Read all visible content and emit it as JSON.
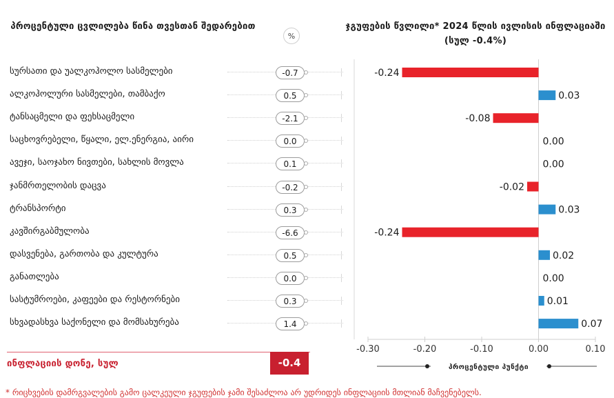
{
  "left_title": "პროცენტული ცვლილება წინა თვესთან შედარებით",
  "pct_header": "%",
  "right_title": "ჯგუფების წვლილი* 2024 წლის ივლისის ინფლაციაში (სულ -0.4%)",
  "categories": [
    {
      "label": "სურსათი და უალკოჰოლო სასმელები",
      "pct": "-0.7"
    },
    {
      "label": "ალკოჰოლური სასმელები, თამბაქო",
      "pct": "0.5"
    },
    {
      "label": "ტანსაცმელი და ფეხსაცმელი",
      "pct": "-2.1"
    },
    {
      "label": "საცხოვრებელი, წყალი, ელ.ენერგია, აირი",
      "pct": "0.0"
    },
    {
      "label": "ავეჯი, საოჯახო ნივთები, სახლის მოვლა",
      "pct": "0.1"
    },
    {
      "label": "ჯანმრთელობის დაცვა",
      "pct": "-0.2"
    },
    {
      "label": "ტრანსპორტი",
      "pct": "0.3"
    },
    {
      "label": "კავშირგაბმულობა",
      "pct": "-6.6"
    },
    {
      "label": "დასვენება, გართობა და კულტურა",
      "pct": "0.5"
    },
    {
      "label": "განათლება",
      "pct": "0.0"
    },
    {
      "label": "სასტუმროები, კაფეები და რესტორნები",
      "pct": "0.3"
    },
    {
      "label": "სხვადასხვა საქონელი და მომსახურება",
      "pct": "1.4"
    }
  ],
  "total": {
    "label": "ინფლაციის დონე, სულ",
    "value": "-0.4"
  },
  "chart_data": {
    "type": "bar",
    "orientation": "horizontal",
    "title": "ჯგუფების წვლილი* 2024 წლის ივლისის ინფლაციაში (სულ -0.4%)",
    "xlabel": "პროცენტული პუნქტი",
    "categories": [
      "სურსათი და უალკოჰოლო სასმელები",
      "ალკოჰოლური სასმელები, თამბაქო",
      "ტანსაცმელი და ფეხსაცმელი",
      "საცხოვრებელი, წყალი, ელ.ენერგია, აირი",
      "ავეჯი, საოჯახო ნივთები, სახლის მოვლა",
      "ჯანმრთელობის დაცვა",
      "ტრანსპორტი",
      "კავშირგაბმულობა",
      "დასვენება, გართობა და კულტურა",
      "განათლება",
      "სასტუმროები, კაფეები და რესტორნები",
      "სხვადასხვა საქონელი და მომსახურება"
    ],
    "values": [
      -0.24,
      0.03,
      -0.08,
      0.0,
      0.0,
      -0.02,
      0.03,
      -0.24,
      0.02,
      0.0,
      0.01,
      0.07
    ],
    "value_labels": [
      "-0.24",
      "0.03",
      "-0.08",
      "0.00",
      "0.00",
      "-0.02",
      "0.03",
      "-0.24",
      "0.02",
      "0.00",
      "0.01",
      "0.07"
    ],
    "xlim": [
      -0.3,
      0.1
    ],
    "xticks": [
      -0.3,
      -0.2,
      -0.1,
      0.0,
      0.1
    ],
    "xtick_labels": [
      "-0.30",
      "-0.20",
      "-0.10",
      "0.00",
      "0.10"
    ],
    "negative_color": "#e8232a",
    "positive_color": "#2b8fce",
    "grid": false
  },
  "footnote": "* რიცხვების დამრგვალების გამო ცალკეული ჯგუფების ჯამი შესაძლოა არ უდრიდეს ინფლაციის მთლიან მაჩვენებელს."
}
